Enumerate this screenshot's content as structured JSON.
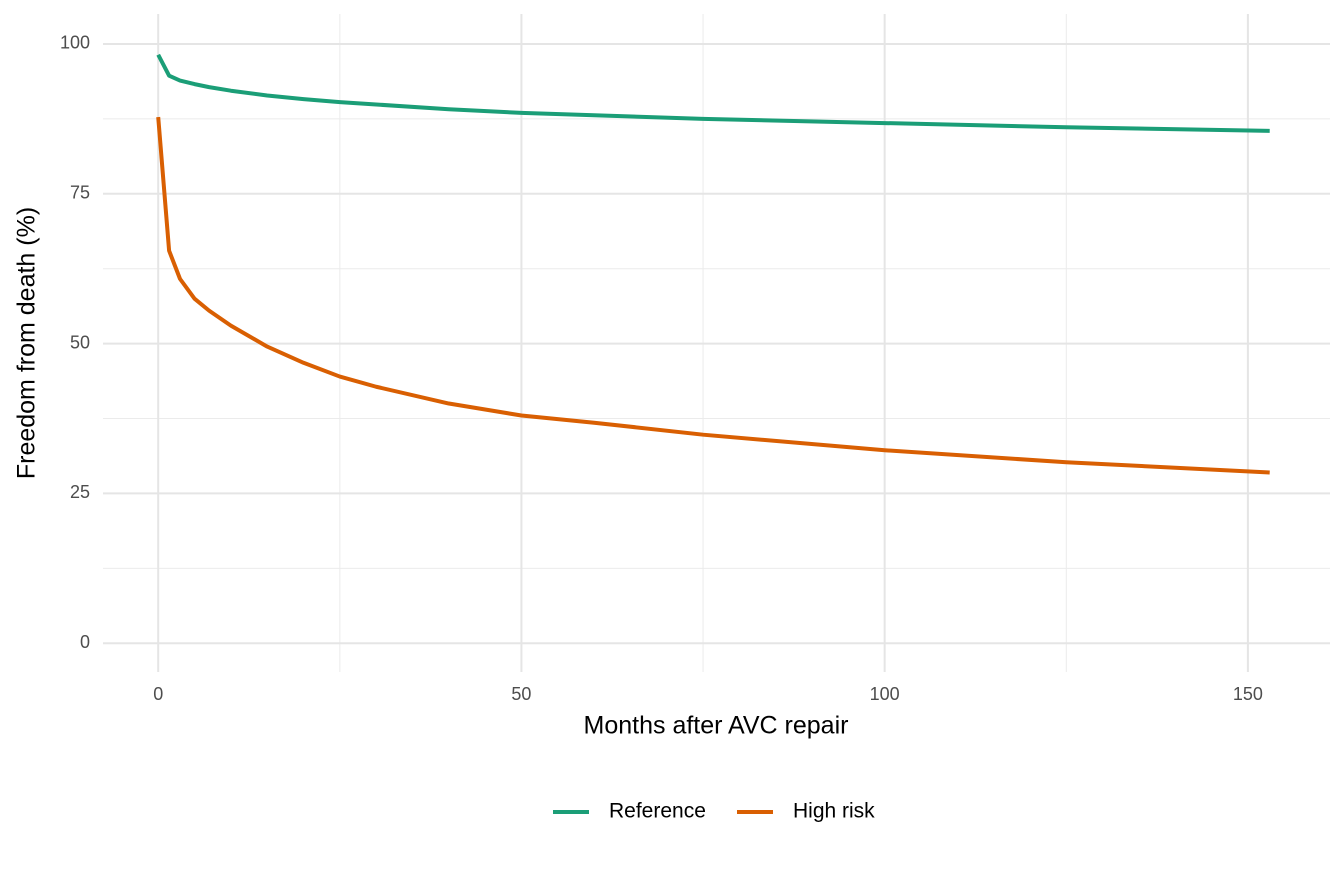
{
  "chart_data": {
    "type": "line",
    "x_label": "Months after AVC repair",
    "y_label": "Freedom from death (%)",
    "x": [
      0,
      1.5,
      3,
      5,
      7,
      10,
      15,
      20,
      25,
      30,
      40,
      50,
      60,
      75,
      100,
      125,
      153
    ],
    "series": [
      {
        "name": "Reference",
        "color": "#1b9e77",
        "values": [
          98.2,
          94.7,
          93.9,
          93.3,
          92.8,
          92.2,
          91.4,
          90.8,
          90.3,
          89.9,
          89.1,
          88.5,
          88.1,
          87.5,
          86.8,
          86.1,
          85.5
        ]
      },
      {
        "name": "High risk",
        "color": "#d95f02",
        "values": [
          87.8,
          65.5,
          60.8,
          57.5,
          55.5,
          53,
          49.5,
          46.8,
          44.5,
          42.8,
          40,
          38,
          36.8,
          34.8,
          32.2,
          30.2,
          28.5
        ]
      }
    ],
    "xlim": [
      -7.6,
      161.3
    ],
    "ylim": [
      -4.8,
      105
    ],
    "xticks": [
      0,
      50,
      100,
      150
    ],
    "yticks": [
      0,
      25,
      50,
      75,
      100
    ],
    "x_minor_ticks": [
      25,
      75,
      125
    ],
    "y_minor_ticks": [
      12.5,
      37.5,
      62.5,
      87.5
    ],
    "grid": true,
    "legend": "bottom"
  }
}
